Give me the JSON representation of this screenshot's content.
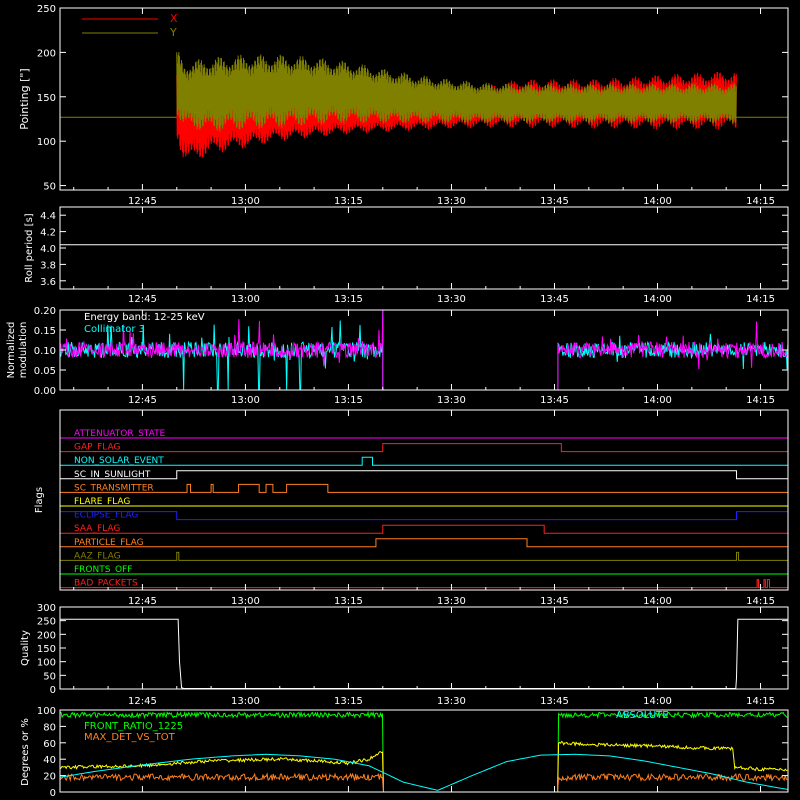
{
  "time_ticks": [
    "12:45",
    "13:00",
    "13:15",
    "13:30",
    "13:45",
    "14:00",
    "14:15"
  ],
  "time_ticks_min": [
    765,
    780,
    795,
    810,
    825,
    840,
    855
  ],
  "time_range_min": [
    753,
    859
  ],
  "colors": {
    "x": "#ff0000",
    "y": "#808000",
    "white": "#ffffff",
    "cyan": "#00ffff",
    "magenta": "#ff00ff",
    "red": "#ff2020",
    "orange": "#ff8020",
    "yellow": "#ffff00",
    "blue": "#2020ff",
    "green": "#00ff00",
    "olive": "#808000"
  },
  "chart_data": [
    {
      "type": "line",
      "id": "pointing",
      "ylabel": "Pointing [\"]",
      "ylim": [
        45,
        250
      ],
      "yticks": [
        50,
        100,
        150,
        200,
        250
      ],
      "legend": "top-left",
      "series": [
        {
          "name": "X",
          "color": "#ff0000",
          "t_start": 770.0,
          "t_end": 851.5,
          "upper_env_t": [
            770,
            771,
            772,
            775,
            780,
            785,
            790,
            795,
            800,
            805,
            810,
            815,
            820,
            825,
            830,
            835,
            840,
            845,
            851
          ],
          "upper_env_v": [
            185,
            170,
            170,
            168,
            165,
            162,
            160,
            157,
            157,
            158,
            160,
            163,
            170,
            170,
            170,
            172,
            175,
            177,
            180
          ],
          "lower_env_t": [
            770,
            771,
            772,
            775,
            780,
            785,
            790,
            795,
            800,
            805,
            810,
            815,
            820,
            825,
            830,
            835,
            840,
            845,
            851
          ],
          "lower_env_v": [
            100,
            80,
            75,
            85,
            92,
            100,
            104,
            108,
            110,
            112,
            114,
            115,
            115,
            115,
            114,
            114,
            113,
            113,
            113
          ]
        },
        {
          "name": "Y",
          "color": "#808000",
          "t_start": 770.0,
          "t_end": 851.5,
          "upper_env_t": [
            770,
            771,
            775,
            780,
            785,
            790,
            795,
            800,
            805,
            810,
            815,
            820,
            825,
            830,
            835,
            840,
            845,
            851
          ],
          "upper_env_v": [
            205,
            190,
            195,
            198,
            198,
            195,
            190,
            182,
            175,
            170,
            166,
            165,
            165,
            165,
            165,
            165,
            165,
            165
          ],
          "lower_env_t": [
            770,
            771,
            775,
            780,
            785,
            790,
            795,
            800,
            805,
            810,
            815,
            820,
            825,
            830,
            835,
            840,
            845,
            851
          ],
          "lower_env_v": [
            130,
            115,
            110,
            113,
            115,
            118,
            120,
            120,
            120,
            120,
            120,
            120,
            120,
            120,
            120,
            120,
            120,
            120
          ]
        }
      ],
      "reference_level": 127
    },
    {
      "type": "line",
      "id": "roll",
      "ylabel": "Roll period [s]",
      "ylim": [
        3.5,
        4.5
      ],
      "yticks": [
        "3.6",
        "3.8",
        "4.0",
        "4.2",
        "4.4"
      ],
      "yticks_val": [
        3.6,
        3.8,
        4.0,
        4.2,
        4.4
      ],
      "series": [
        {
          "color": "#ffffff",
          "t": [
            753,
            859
          ],
          "v": [
            4.04,
            4.04
          ]
        }
      ]
    },
    {
      "type": "line",
      "id": "modulation",
      "ylabel": [
        "Normalized",
        "modulation"
      ],
      "ylim": [
        0.0,
        0.2
      ],
      "yticks": [
        "0.00",
        "0.05",
        "0.10",
        "0.15",
        "0.20"
      ],
      "yticks_val": [
        0.0,
        0.05,
        0.1,
        0.15,
        0.2
      ],
      "annotations": [
        "Energy band: 12-25 keV",
        "Collimator 3"
      ],
      "segments": [
        {
          "t_start": 753,
          "t_end": 800.0,
          "mean": 0.1
        },
        {
          "t_start": 825.5,
          "t_end": 859,
          "mean": 0.1
        }
      ],
      "gap": [
        800.0,
        825.5
      ],
      "cyan_dropouts_min": [
        771,
        776,
        777.5,
        782,
        786,
        788
      ],
      "series": [
        {
          "name": "cyan",
          "color": "#00ffff"
        },
        {
          "name": "magenta",
          "color": "#ff00ff"
        }
      ]
    },
    {
      "type": "timeline",
      "id": "flags",
      "ylabel": "Flags",
      "flags": [
        {
          "name": "ATTENUATOR_STATE",
          "color": "#ff00ff",
          "high": []
        },
        {
          "name": "GAP_FLAG",
          "color": "#ff2020",
          "high": [
            [
              800,
              826
            ]
          ]
        },
        {
          "name": "NON_SOLAR_EVENT",
          "color": "#00ffff",
          "high": [
            [
              797,
              798.5
            ]
          ]
        },
        {
          "name": "SC_IN_SUNLIGHT",
          "color": "#ffffff",
          "high": [
            [
              770,
              851.5
            ]
          ]
        },
        {
          "name": "SC_TRANSMITTER",
          "color": "#ff8020",
          "high": [
            [
              771.5,
              772
            ],
            [
              775,
              775.3
            ],
            [
              779,
              782
            ],
            [
              783,
              784
            ],
            [
              786,
              792
            ]
          ]
        },
        {
          "name": "FLARE_FLAG",
          "color": "#ffff00",
          "high": []
        },
        {
          "name": "ECLIPSE_FLAG",
          "color": "#2020ff",
          "high": [
            [
              753,
              770
            ],
            [
              851.5,
              859
            ]
          ]
        },
        {
          "name": "SAA_FLAG",
          "color": "#ff2020",
          "high": [
            [
              800,
              823.5
            ]
          ]
        },
        {
          "name": "PARTICLE_FLAG",
          "color": "#ff8020",
          "high": [
            [
              799,
              821
            ]
          ]
        },
        {
          "name": "AAZ_FLAG",
          "color": "#808000",
          "high": [
            [
              770,
              770.3
            ],
            [
              851.5,
              851.8
            ]
          ]
        },
        {
          "name": "FRONTS_OFF",
          "color": "#00ff00",
          "high": []
        },
        {
          "name": "BAD_PACKETS",
          "color": "#ff2020",
          "high": [
            [
              854.5,
              854.7
            ],
            [
              855.5,
              855.7
            ],
            [
              856,
              856.3
            ]
          ]
        }
      ]
    },
    {
      "type": "line",
      "id": "quality",
      "ylabel": "Quality",
      "ylim": [
        0,
        300
      ],
      "yticks": [
        "0",
        "50",
        "100",
        "150",
        "200",
        "250",
        "300"
      ],
      "yticks_val": [
        0,
        50,
        100,
        150,
        200,
        250,
        300
      ],
      "series": [
        {
          "color": "#ffffff",
          "t": [
            753,
            770.2,
            770.4,
            770.7,
            771,
            851.4,
            851.5,
            851.7,
            859
          ],
          "v": [
            255,
            255,
            100,
            5,
            2,
            2,
            40,
            255,
            255
          ]
        }
      ]
    },
    {
      "type": "line",
      "id": "geometry",
      "ylabel": "Degrees or %",
      "ylim": [
        0,
        100
      ],
      "yticks": [
        "0",
        "20",
        "40",
        "60",
        "80",
        "100"
      ],
      "yticks_val": [
        0,
        20,
        40,
        60,
        80,
        100
      ],
      "legend_entries": [
        {
          "name": "FRONT_RATIO_1225",
          "color": "#00ff00"
        },
        {
          "name": "MAX_DET_VS_TOT",
          "color": "#ff8020"
        }
      ],
      "overprinted_labels": [
        {
          "text": "ABSOLUTE",
          "color": "#00ffff"
        }
      ],
      "series": [
        {
          "name": "green",
          "color": "#00ff00",
          "t": [
            753,
            800,
            800,
            825.5,
            825.5,
            859
          ],
          "v": [
            95,
            95,
            0,
            0,
            95,
            95
          ]
        },
        {
          "name": "yellow",
          "color": "#ffff00",
          "t": [
            753,
            765,
            775,
            785,
            790,
            795,
            798,
            800,
            825.5,
            830,
            835,
            840,
            845,
            851,
            851.2,
            855,
            859
          ],
          "v": [
            30,
            32,
            38,
            40,
            38,
            35,
            40,
            50,
            60,
            58,
            57,
            56,
            54,
            53,
            30,
            28,
            27
          ]
        },
        {
          "name": "orange",
          "color": "#ff8020",
          "t": [
            753,
            800,
            825.5,
            859
          ],
          "v": [
            18,
            18,
            18,
            18
          ]
        },
        {
          "name": "cyan",
          "color": "#00ffff",
          "t": [
            753,
            758,
            765,
            772,
            778,
            783,
            788,
            793,
            798,
            803,
            808,
            813,
            818,
            823,
            828,
            833,
            838,
            843,
            848,
            853,
            859
          ],
          "v": [
            18,
            25,
            33,
            40,
            44,
            46,
            44,
            40,
            32,
            12,
            2,
            20,
            37,
            45,
            46,
            44,
            38,
            30,
            22,
            12,
            3
          ]
        }
      ]
    }
  ]
}
